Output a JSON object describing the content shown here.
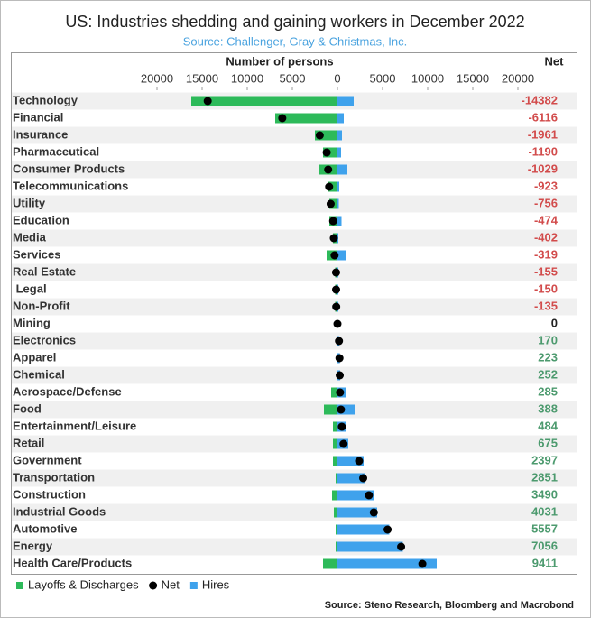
{
  "chart_data": {
    "type": "bar",
    "title": "US: Industries shedding and gaining workers in December 2022",
    "subtitle": "Source: Challenger, Gray & Christmas, Inc.",
    "x_label": "Number of persons",
    "net_label": "Net",
    "source": "Source: Steno Research, Bloomberg and Macrobond",
    "categories": [
      "Technology",
      "Financial",
      "Insurance",
      "Pharmaceutical",
      "Consumer Products",
      "Telecommunications",
      "Utility",
      "Education",
      "Media",
      "Services",
      "Real Estate",
      " Legal",
      "Non-Profit",
      "Mining",
      "Electronics",
      "Apparel",
      "Chemical",
      "Aerospace/Defense",
      "Food",
      "Entertainment/Leisure",
      "Retail",
      "Government",
      "Transportation",
      "Construction",
      "Industrial Goods",
      "Automotive",
      "Energy",
      "Health Care/Products"
    ],
    "series": [
      {
        "name": "Layoffs & Discharges",
        "color": "#2dba5a",
        "values": [
          -16200,
          -6900,
          -2500,
          -1600,
          -2100,
          -1100,
          -900,
          -900,
          -500,
          -1200,
          -250,
          -250,
          -250,
          0,
          -50,
          -50,
          -50,
          -700,
          -1500,
          -500,
          -500,
          -500,
          -200,
          -600,
          -400,
          -200,
          -200,
          -1600
        ]
      },
      {
        "name": "Net",
        "color": "#000000",
        "values": [
          -14382,
          -6116,
          -1961,
          -1190,
          -1029,
          -923,
          -756,
          -474,
          -402,
          -319,
          -155,
          -150,
          -135,
          0,
          170,
          223,
          252,
          285,
          388,
          484,
          675,
          2397,
          2851,
          3490,
          4031,
          5557,
          7056,
          9411
        ]
      },
      {
        "name": "Hires",
        "color": "#3fa2ec",
        "values": [
          1800,
          700,
          500,
          400,
          1100,
          200,
          150,
          450,
          100,
          900,
          100,
          100,
          100,
          0,
          220,
          270,
          300,
          1000,
          1900,
          1000,
          1200,
          2900,
          3050,
          4100,
          4400,
          5750,
          7250,
          11000
        ]
      }
    ],
    "xlim": [
      -36000,
      22000
    ],
    "xticks": [
      {
        "value": -20000,
        "label": "20000"
      },
      {
        "value": -15000,
        "label": "15000"
      },
      {
        "value": -10000,
        "label": "10000"
      },
      {
        "value": -5000,
        "label": "5000"
      },
      0,
      5000,
      10000,
      15000,
      20000
    ]
  }
}
